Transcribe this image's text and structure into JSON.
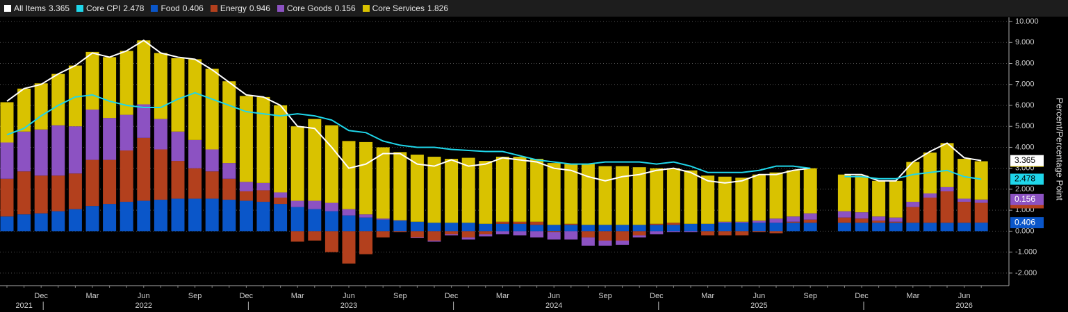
{
  "chart_data": {
    "type": "bar",
    "stacked": true,
    "y_label": "Percent/Percentage Point",
    "grid": true,
    "categories": [
      "2021-10",
      "2021-11",
      "2021-12",
      "2022-01",
      "2022-02",
      "2022-03",
      "2022-04",
      "2022-05",
      "2022-06",
      "2022-07",
      "2022-08",
      "2022-09",
      "2022-10",
      "2022-11",
      "2022-12",
      "2023-01",
      "2023-02",
      "2023-03",
      "2023-04",
      "2023-05",
      "2023-06",
      "2023-07",
      "2023-08",
      "2023-09",
      "2023-10",
      "2023-11",
      "2023-12",
      "2024-01",
      "2024-02",
      "2024-03",
      "2024-04",
      "2024-05",
      "2024-06",
      "2024-07",
      "2024-08",
      "2024-09",
      "2024-10",
      "2024-11",
      "2024-12",
      "2025-01",
      "2025-02",
      "2025-03",
      "2025-04",
      "2025-05",
      "2025-06",
      "2025-07",
      "2025-08",
      "2025-09",
      "2025-10",
      "2025-11",
      "2025-12",
      "2026-01",
      "2026-02",
      "2026-03",
      "2026-04",
      "2026-05",
      "2026-06",
      "2026-07"
    ],
    "xtick_labels": [
      {
        "value": "2021-12",
        "label": "Dec"
      },
      {
        "value": "2022-03",
        "label": "Mar"
      },
      {
        "value": "2022-06",
        "label": "Jun"
      },
      {
        "value": "2022-09",
        "label": "Sep"
      },
      {
        "value": "2022-12",
        "label": "Dec"
      },
      {
        "value": "2023-03",
        "label": "Mar"
      },
      {
        "value": "2023-06",
        "label": "Jun"
      },
      {
        "value": "2023-09",
        "label": "Sep"
      },
      {
        "value": "2023-12",
        "label": "Dec"
      },
      {
        "value": "2024-03",
        "label": "Mar"
      },
      {
        "value": "2024-06",
        "label": "Jun"
      },
      {
        "value": "2024-09",
        "label": "Sep"
      },
      {
        "value": "2024-12",
        "label": "Dec"
      },
      {
        "value": "2025-03",
        "label": "Mar"
      },
      {
        "value": "2025-06",
        "label": "Jun"
      },
      {
        "value": "2025-09",
        "label": "Sep"
      },
      {
        "value": "2025-12",
        "label": "Dec"
      },
      {
        "value": "2026-03",
        "label": "Mar"
      },
      {
        "value": "2026-06",
        "label": "Jun"
      }
    ],
    "year_labels": [
      {
        "value": "2021-11",
        "label": "2021"
      },
      {
        "value": "2022-06",
        "label": "2022"
      },
      {
        "value": "2023-06",
        "label": "2023"
      },
      {
        "value": "2024-06",
        "label": "2024"
      },
      {
        "value": "2025-06",
        "label": "2025"
      },
      {
        "value": "2026-06",
        "label": "2026"
      }
    ],
    "ylim": [
      -2.6,
      10.2
    ],
    "yticks": [
      {
        "value": -2,
        "label": "-2.000"
      },
      {
        "value": -1,
        "label": "-1.000"
      },
      {
        "value": 0,
        "label": "0.000"
      },
      {
        "value": 1,
        "label": "1.000"
      },
      {
        "value": 2,
        "label": "2.000"
      },
      {
        "value": 3,
        "label": "3.000"
      },
      {
        "value": 4,
        "label": "4.000"
      },
      {
        "value": 5,
        "label": "5.000"
      },
      {
        "value": 6,
        "label": "6.000"
      },
      {
        "value": 7,
        "label": "7.000"
      },
      {
        "value": 8,
        "label": "8.000"
      },
      {
        "value": 9,
        "label": "9.000"
      },
      {
        "value": 10,
        "label": "10.000"
      }
    ],
    "series": [
      {
        "name": "All Items",
        "color": "#ffffff",
        "kind": "line",
        "values": [
          6.2,
          6.8,
          7.0,
          7.5,
          7.9,
          8.5,
          8.3,
          8.6,
          9.1,
          8.5,
          8.3,
          8.2,
          7.7,
          7.1,
          6.5,
          6.4,
          6.0,
          5.0,
          4.9,
          4.0,
          3.0,
          3.2,
          3.7,
          3.7,
          3.2,
          3.1,
          3.4,
          3.1,
          3.2,
          3.5,
          3.4,
          3.3,
          3.0,
          2.9,
          2.6,
          2.4,
          2.6,
          2.7,
          2.9,
          3.0,
          2.8,
          2.4,
          2.3,
          2.4,
          2.7,
          2.7,
          2.9,
          3.0,
          null,
          2.7,
          2.7,
          2.4,
          2.4,
          3.3,
          3.8,
          4.2,
          3.5,
          3.365
        ]
      },
      {
        "name": "Core CPI",
        "color": "#1fd6ea",
        "kind": "line",
        "values": [
          4.6,
          4.9,
          5.5,
          6.0,
          6.4,
          6.5,
          6.2,
          6.0,
          5.9,
          5.9,
          6.3,
          6.6,
          6.3,
          6.0,
          5.7,
          5.6,
          5.5,
          5.6,
          5.5,
          5.3,
          4.8,
          4.7,
          4.3,
          4.1,
          4.0,
          4.0,
          3.9,
          3.85,
          3.8,
          3.8,
          3.6,
          3.4,
          3.3,
          3.2,
          3.2,
          3.3,
          3.3,
          3.3,
          3.2,
          3.3,
          3.1,
          2.8,
          2.8,
          2.8,
          2.9,
          3.1,
          3.1,
          3.0,
          null,
          2.6,
          2.6,
          2.5,
          2.5,
          2.7,
          2.8,
          2.9,
          2.6,
          2.478
        ]
      },
      {
        "name": "Food",
        "color": "#0a56c9",
        "kind": "bar",
        "values": [
          0.7,
          0.8,
          0.85,
          0.95,
          1.05,
          1.2,
          1.3,
          1.4,
          1.45,
          1.5,
          1.55,
          1.55,
          1.55,
          1.5,
          1.45,
          1.4,
          1.3,
          1.15,
          1.05,
          0.95,
          0.75,
          0.65,
          0.55,
          0.5,
          0.45,
          0.4,
          0.4,
          0.4,
          0.35,
          0.35,
          0.35,
          0.3,
          0.3,
          0.3,
          0.3,
          0.3,
          0.3,
          0.3,
          0.3,
          0.3,
          0.35,
          0.35,
          0.4,
          0.4,
          0.4,
          0.4,
          0.4,
          0.4,
          null,
          0.4,
          0.4,
          0.4,
          0.4,
          0.4,
          0.4,
          0.4,
          0.4,
          0.406
        ]
      },
      {
        "name": "Energy",
        "color": "#b3401d",
        "kind": "bar",
        "values": [
          1.8,
          2.05,
          1.8,
          1.7,
          1.7,
          2.2,
          2.1,
          2.45,
          3.0,
          2.4,
          1.8,
          1.45,
          1.3,
          1.0,
          0.45,
          0.55,
          0.3,
          -0.5,
          -0.45,
          -1.0,
          -1.55,
          -1.1,
          -0.3,
          -0.05,
          -0.3,
          -0.45,
          -0.15,
          -0.3,
          -0.15,
          0.1,
          0.1,
          0.15,
          -0.05,
          0.05,
          -0.3,
          -0.45,
          -0.45,
          -0.2,
          0.05,
          0.1,
          0.0,
          -0.2,
          -0.2,
          -0.2,
          -0.05,
          -0.1,
          0.05,
          0.15,
          null,
          0.25,
          0.2,
          0.1,
          0.05,
          0.75,
          1.2,
          1.5,
          1.0,
          0.946
        ]
      },
      {
        "name": "Core Goods",
        "color": "#8c52c2",
        "kind": "bar",
        "values": [
          1.73,
          1.9,
          2.2,
          2.4,
          2.25,
          2.4,
          2.0,
          1.7,
          1.6,
          1.45,
          1.4,
          1.35,
          1.05,
          0.75,
          0.45,
          0.35,
          0.25,
          0.3,
          0.4,
          0.4,
          0.3,
          0.15,
          0.05,
          0.02,
          -0.02,
          -0.05,
          -0.05,
          -0.1,
          -0.1,
          -0.15,
          -0.2,
          -0.3,
          -0.35,
          -0.4,
          -0.4,
          -0.25,
          -0.2,
          -0.1,
          -0.15,
          -0.05,
          -0.05,
          0.0,
          0.05,
          0.05,
          0.1,
          0.2,
          0.25,
          0.3,
          null,
          0.3,
          0.3,
          0.2,
          0.2,
          0.25,
          0.2,
          0.2,
          0.15,
          0.156
        ]
      },
      {
        "name": "Core Services",
        "color": "#d9c200",
        "kind": "bar",
        "values": [
          1.92,
          2.05,
          2.2,
          2.45,
          2.9,
          2.75,
          2.9,
          3.05,
          3.05,
          3.15,
          3.5,
          3.85,
          3.85,
          3.9,
          4.1,
          4.1,
          4.15,
          3.55,
          3.9,
          3.7,
          3.25,
          3.45,
          3.4,
          3.25,
          3.2,
          3.15,
          3.05,
          3.1,
          3.0,
          3.1,
          3.1,
          3.0,
          2.95,
          2.85,
          2.9,
          2.8,
          2.8,
          2.75,
          2.65,
          2.6,
          2.55,
          2.3,
          2.15,
          2.1,
          2.2,
          2.2,
          2.2,
          2.15,
          null,
          1.75,
          1.75,
          1.7,
          1.75,
          1.9,
          1.95,
          2.1,
          1.9,
          1.826
        ]
      }
    ]
  }
}
